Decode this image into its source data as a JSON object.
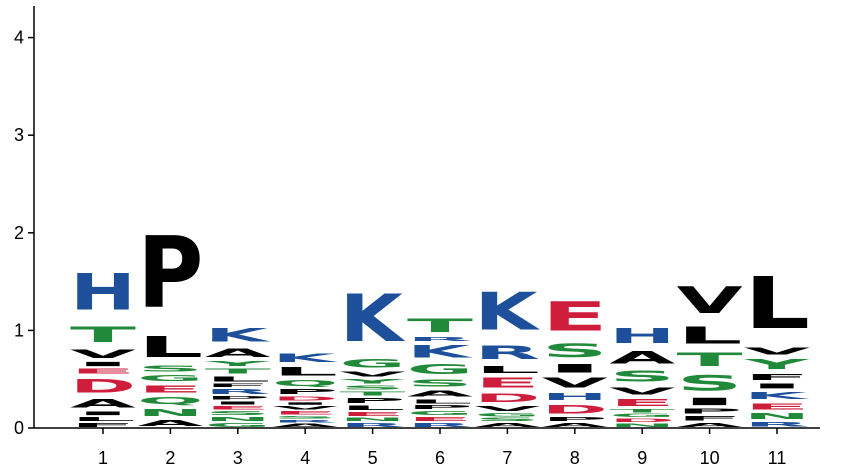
{
  "chart_data": {
    "type": "sequence-logo",
    "ylim": [
      0,
      4.3
    ],
    "yticks": [
      "0",
      "1",
      "2",
      "3",
      "4"
    ],
    "ytick_values": [
      0,
      1,
      2,
      3,
      4
    ],
    "xticks": [
      "1",
      "2",
      "3",
      "4",
      "5",
      "6",
      "7",
      "8",
      "9",
      "10",
      "11"
    ],
    "colors": {
      "hydrophobic": "#000000",
      "polar": "#21893a",
      "basic": "#1d4f9a",
      "acidic": "#cf1e3c"
    },
    "positions": [
      {
        "label": "1",
        "letters": [
          {
            "aa": "F",
            "h": 0.06
          },
          {
            "aa": "L",
            "h": 0.06
          },
          {
            "aa": "I",
            "h": 0.06
          },
          {
            "aa": "A",
            "h": 0.14
          },
          {
            "aa": "D",
            "h": 0.22
          },
          {
            "aa": "E",
            "h": 0.08
          },
          {
            "aa": "I",
            "h": 0.07
          },
          {
            "aa": "V",
            "h": 0.14
          },
          {
            "aa": "T",
            "h": 0.26
          },
          {
            "aa": "H",
            "h": 0.6
          }
        ]
      },
      {
        "label": "2",
        "letters": [
          {
            "aa": "A",
            "h": 0.1
          },
          {
            "aa": "N",
            "h": 0.12
          },
          {
            "aa": "Q",
            "h": 0.12
          },
          {
            "aa": "E",
            "h": 0.12
          },
          {
            "aa": "G",
            "h": 0.1
          },
          {
            "aa": "S",
            "h": 0.1
          },
          {
            "aa": "L",
            "h": 0.34
          },
          {
            "aa": "P",
            "h": 1.18
          }
        ]
      },
      {
        "label": "3",
        "letters": [
          {
            "aa": "G",
            "h": 0.06
          },
          {
            "aa": "N",
            "h": 0.06
          },
          {
            "aa": "S",
            "h": 0.06
          },
          {
            "aa": "E",
            "h": 0.05
          },
          {
            "aa": "I",
            "h": 0.05
          },
          {
            "aa": "P",
            "h": 0.05
          },
          {
            "aa": "R",
            "h": 0.08
          },
          {
            "aa": "F",
            "h": 0.05
          },
          {
            "aa": "L",
            "h": 0.08
          },
          {
            "aa": "T",
            "h": 0.08
          },
          {
            "aa": "Y",
            "h": 0.08
          },
          {
            "aa": "A",
            "h": 0.14
          },
          {
            "aa": "K",
            "h": 0.22
          }
        ]
      },
      {
        "label": "4",
        "letters": [
          {
            "aa": "A",
            "h": 0.05
          },
          {
            "aa": "R",
            "h": 0.04
          },
          {
            "aa": "S",
            "h": 0.04
          },
          {
            "aa": "E",
            "h": 0.05
          },
          {
            "aa": "V",
            "h": 0.05
          },
          {
            "aa": "I",
            "h": 0.04
          },
          {
            "aa": "D",
            "h": 0.06
          },
          {
            "aa": "P",
            "h": 0.08
          },
          {
            "aa": "Q",
            "h": 0.1
          },
          {
            "aa": "L",
            "h": 0.14
          },
          {
            "aa": "K",
            "h": 0.14
          }
        ]
      },
      {
        "label": "5",
        "letters": [
          {
            "aa": "R",
            "h": 0.06
          },
          {
            "aa": "N",
            "h": 0.05
          },
          {
            "aa": "E",
            "h": 0.06
          },
          {
            "aa": "L",
            "h": 0.07
          },
          {
            "aa": "P",
            "h": 0.08
          },
          {
            "aa": "T",
            "h": 0.06
          },
          {
            "aa": "S",
            "h": 0.06
          },
          {
            "aa": "Y",
            "h": 0.07
          },
          {
            "aa": "V",
            "h": 0.08
          },
          {
            "aa": "G",
            "h": 0.14
          },
          {
            "aa": "K",
            "h": 0.78
          }
        ]
      },
      {
        "label": "6",
        "letters": [
          {
            "aa": "R",
            "h": 0.06
          },
          {
            "aa": "E",
            "h": 0.06
          },
          {
            "aa": "G",
            "h": 0.06
          },
          {
            "aa": "P",
            "h": 0.06
          },
          {
            "aa": "L",
            "h": 0.06
          },
          {
            "aa": "A",
            "h": 0.1
          },
          {
            "aa": "S",
            "h": 0.12
          },
          {
            "aa": "G",
            "h": 0.16
          },
          {
            "aa": "K",
            "h": 0.2
          },
          {
            "aa": "R",
            "h": 0.06
          },
          {
            "aa": "T",
            "h": 0.22
          }
        ]
      },
      {
        "label": "7",
        "letters": [
          {
            "aa": "A",
            "h": 0.06
          },
          {
            "aa": "S",
            "h": 0.05
          },
          {
            "aa": "G",
            "h": 0.05
          },
          {
            "aa": "V",
            "h": 0.08
          },
          {
            "aa": "D",
            "h": 0.14
          },
          {
            "aa": "E",
            "h": 0.16
          },
          {
            "aa": "L",
            "h": 0.12
          },
          {
            "aa": "R",
            "h": 0.22
          },
          {
            "aa": "K",
            "h": 0.62
          }
        ]
      },
      {
        "label": "8",
        "letters": [
          {
            "aa": "A",
            "h": 0.06
          },
          {
            "aa": "P",
            "h": 0.06
          },
          {
            "aa": "D",
            "h": 0.14
          },
          {
            "aa": "H",
            "h": 0.12
          },
          {
            "aa": "V",
            "h": 0.16
          },
          {
            "aa": "I",
            "h": 0.14
          },
          {
            "aa": "S",
            "h": 0.22
          },
          {
            "aa": "E",
            "h": 0.48
          }
        ]
      },
      {
        "label": "9",
        "letters": [
          {
            "aa": "N",
            "h": 0.05
          },
          {
            "aa": "D",
            "h": 0.05
          },
          {
            "aa": "G",
            "h": 0.05
          },
          {
            "aa": "T",
            "h": 0.05
          },
          {
            "aa": "E",
            "h": 0.12
          },
          {
            "aa": "V",
            "h": 0.12
          },
          {
            "aa": "S",
            "h": 0.18
          },
          {
            "aa": "A",
            "h": 0.2
          },
          {
            "aa": "H",
            "h": 0.24
          }
        ]
      },
      {
        "label": "10",
        "letters": [
          {
            "aa": "A",
            "h": 0.06
          },
          {
            "aa": "F",
            "h": 0.07
          },
          {
            "aa": "P",
            "h": 0.08
          },
          {
            "aa": "I",
            "h": 0.12
          },
          {
            "aa": "S",
            "h": 0.26
          },
          {
            "aa": "T",
            "h": 0.22
          },
          {
            "aa": "L",
            "h": 0.28
          },
          {
            "aa": "V",
            "h": 0.44
          }
        ]
      },
      {
        "label": "11",
        "letters": [
          {
            "aa": "R",
            "h": 0.07
          },
          {
            "aa": "N",
            "h": 0.1
          },
          {
            "aa": "E",
            "h": 0.1
          },
          {
            "aa": "K",
            "h": 0.12
          },
          {
            "aa": "I",
            "h": 0.08
          },
          {
            "aa": "F",
            "h": 0.1
          },
          {
            "aa": "Y",
            "h": 0.16
          },
          {
            "aa": "V",
            "h": 0.12
          },
          {
            "aa": "L",
            "h": 0.86
          }
        ]
      }
    ]
  }
}
